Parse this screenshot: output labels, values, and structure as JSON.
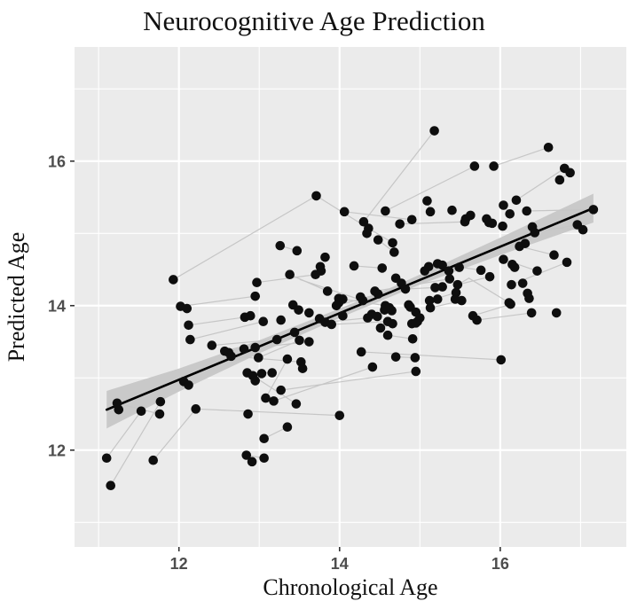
{
  "title": "Neurocognitive Age Prediction",
  "chart_data": {
    "type": "scatter",
    "title": "Neurocognitive Age Prediction",
    "xlabel": "Chronological Age",
    "ylabel": "Predicted Age",
    "xlim": [
      10.7,
      17.57
    ],
    "ylim": [
      10.66,
      17.58
    ],
    "x_ticks": [
      12,
      14,
      16
    ],
    "x_tick_labels": [
      "12",
      "14",
      "16"
    ],
    "y_ticks": [
      12,
      14,
      16
    ],
    "y_tick_labels": [
      "12",
      "14",
      "16"
    ],
    "x_minor_ticks": [
      11,
      13,
      15,
      17
    ],
    "y_minor_ticks": [
      11,
      13,
      15,
      17
    ],
    "grid": true,
    "legend": "none",
    "colors": {
      "panel_bg": "#ebebeb",
      "grid": "#ffffff",
      "point": "#0e0e0e",
      "regression_line": "#000000",
      "confidence_band": "#c9c9c9",
      "subject_line": "#c6c6c6",
      "tick_text": "#4d4d4d",
      "tick_mark": "#333333",
      "title_text": "#111111"
    },
    "regression": {
      "x1": 11.1,
      "y1": 12.56,
      "x2": 17.16,
      "y2": 15.35
    },
    "band": {
      "x": [
        11.1,
        12.0,
        13.0,
        14.0,
        14.5,
        15.0,
        16.0,
        17.16
      ],
      "upper": [
        12.82,
        13.13,
        13.52,
        13.96,
        14.18,
        14.43,
        14.94,
        15.55
      ],
      "lower": [
        12.3,
        12.81,
        13.34,
        13.83,
        14.06,
        14.29,
        14.7,
        15.15
      ]
    },
    "points": [
      [
        15.18,
        16.42
      ],
      [
        16.6,
        16.19
      ],
      [
        15.68,
        15.93
      ],
      [
        15.92,
        15.93
      ],
      [
        16.8,
        15.9
      ],
      [
        16.87,
        15.84
      ],
      [
        16.74,
        15.74
      ],
      [
        13.71,
        15.52
      ],
      [
        15.09,
        15.45
      ],
      [
        16.2,
        15.46
      ],
      [
        16.04,
        15.39
      ],
      [
        15.4,
        15.32
      ],
      [
        16.33,
        15.31
      ],
      [
        14.57,
        15.31
      ],
      [
        15.13,
        15.3
      ],
      [
        14.06,
        15.3
      ],
      [
        17.16,
        15.33
      ],
      [
        16.12,
        15.27
      ],
      [
        15.63,
        15.25
      ],
      [
        15.57,
        15.2
      ],
      [
        15.83,
        15.2
      ],
      [
        14.9,
        15.19
      ],
      [
        15.56,
        15.16
      ],
      [
        14.3,
        15.16
      ],
      [
        15.86,
        15.15
      ],
      [
        15.9,
        15.14
      ],
      [
        14.75,
        15.13
      ],
      [
        16.96,
        15.12
      ],
      [
        16.03,
        15.1
      ],
      [
        16.4,
        15.09
      ],
      [
        14.36,
        15.07
      ],
      [
        17.03,
        15.05
      ],
      [
        16.43,
        15.01
      ],
      [
        14.34,
        15.0
      ],
      [
        14.48,
        14.91
      ],
      [
        14.66,
        14.87
      ],
      [
        16.31,
        14.86
      ],
      [
        13.26,
        14.83
      ],
      [
        16.24,
        14.82
      ],
      [
        13.47,
        14.76
      ],
      [
        14.68,
        14.74
      ],
      [
        16.67,
        14.7
      ],
      [
        13.82,
        14.67
      ],
      [
        16.04,
        14.64
      ],
      [
        16.83,
        14.6
      ],
      [
        15.22,
        14.58
      ],
      [
        16.15,
        14.57
      ],
      [
        15.28,
        14.56
      ],
      [
        14.18,
        14.55
      ],
      [
        13.76,
        14.54
      ],
      [
        15.11,
        14.54
      ],
      [
        16.18,
        14.53
      ],
      [
        14.53,
        14.52
      ],
      [
        15.49,
        14.53
      ],
      [
        15.76,
        14.49
      ],
      [
        13.77,
        14.48
      ],
      [
        15.06,
        14.48
      ],
      [
        15.36,
        14.48
      ],
      [
        16.46,
        14.48
      ],
      [
        13.7,
        14.43
      ],
      [
        13.38,
        14.43
      ],
      [
        15.87,
        14.4
      ],
      [
        14.7,
        14.38
      ],
      [
        15.37,
        14.37
      ],
      [
        11.93,
        14.36
      ],
      [
        12.97,
        14.32
      ],
      [
        14.77,
        14.31
      ],
      [
        16.28,
        14.31
      ],
      [
        15.47,
        14.29
      ],
      [
        16.14,
        14.29
      ],
      [
        15.28,
        14.26
      ],
      [
        15.19,
        14.25
      ],
      [
        14.82,
        14.23
      ],
      [
        13.85,
        14.2
      ],
      [
        14.44,
        14.2
      ],
      [
        15.45,
        14.18
      ],
      [
        16.34,
        14.17
      ],
      [
        14.48,
        14.16
      ],
      [
        12.95,
        14.13
      ],
      [
        14.26,
        14.12
      ],
      [
        16.36,
        14.1
      ],
      [
        13.99,
        14.1
      ],
      [
        15.22,
        14.09
      ],
      [
        14.04,
        14.09
      ],
      [
        15.44,
        14.09
      ],
      [
        14.29,
        14.07
      ],
      [
        15.52,
        14.07
      ],
      [
        15.12,
        14.07
      ],
      [
        13.99,
        14.04
      ],
      [
        16.11,
        14.04
      ],
      [
        16.13,
        14.02
      ],
      [
        13.42,
        14.01
      ],
      [
        13.96,
        14.0
      ],
      [
        14.57,
        14.0
      ],
      [
        14.86,
        14.01
      ],
      [
        12.02,
        13.99
      ],
      [
        14.88,
        13.98
      ],
      [
        15.13,
        13.97
      ],
      [
        14.62,
        13.97
      ],
      [
        12.1,
        13.96
      ],
      [
        13.49,
        13.94
      ],
      [
        14.65,
        13.93
      ],
      [
        14.56,
        13.94
      ],
      [
        14.95,
        13.91
      ],
      [
        16.39,
        13.9
      ],
      [
        16.7,
        13.9
      ],
      [
        13.62,
        13.9
      ],
      [
        12.89,
        13.86
      ],
      [
        15.66,
        13.86
      ],
      [
        14.4,
        13.88
      ],
      [
        14.04,
        13.86
      ],
      [
        12.82,
        13.84
      ],
      [
        14.35,
        13.83
      ],
      [
        15.0,
        13.83
      ],
      [
        13.75,
        13.82
      ],
      [
        15.71,
        13.8
      ],
      [
        13.05,
        13.78
      ],
      [
        14.47,
        13.85
      ],
      [
        14.97,
        13.78
      ],
      [
        14.6,
        13.78
      ],
      [
        13.27,
        13.8
      ],
      [
        14.9,
        13.75
      ],
      [
        14.95,
        13.76
      ],
      [
        12.12,
        13.73
      ],
      [
        13.82,
        13.77
      ],
      [
        13.9,
        13.74
      ],
      [
        14.66,
        13.75
      ],
      [
        14.51,
        13.69
      ],
      [
        13.44,
        13.63
      ],
      [
        14.6,
        13.59
      ],
      [
        12.14,
        13.53
      ],
      [
        13.22,
        13.53
      ],
      [
        13.5,
        13.52
      ],
      [
        14.91,
        13.54
      ],
      [
        13.62,
        13.5
      ],
      [
        12.41,
        13.45
      ],
      [
        12.95,
        13.42
      ],
      [
        12.81,
        13.4
      ],
      [
        12.57,
        13.37
      ],
      [
        14.27,
        13.36
      ],
      [
        12.62,
        13.35
      ],
      [
        12.65,
        13.3
      ],
      [
        12.99,
        13.28
      ],
      [
        14.94,
        13.28
      ],
      [
        13.35,
        13.26
      ],
      [
        16.01,
        13.25
      ],
      [
        14.7,
        13.29
      ],
      [
        13.52,
        13.22
      ],
      [
        13.54,
        13.13
      ],
      [
        14.41,
        13.15
      ],
      [
        14.95,
        13.09
      ],
      [
        13.16,
        13.07
      ],
      [
        12.85,
        13.07
      ],
      [
        13.03,
        13.06
      ],
      [
        12.92,
        13.03
      ],
      [
        12.95,
        12.96
      ],
      [
        12.06,
        12.95
      ],
      [
        12.12,
        12.9
      ],
      [
        13.27,
        12.83
      ],
      [
        13.08,
        12.72
      ],
      [
        11.77,
        12.67
      ],
      [
        11.23,
        12.65
      ],
      [
        13.46,
        12.64
      ],
      [
        13.18,
        12.68
      ],
      [
        12.21,
        12.57
      ],
      [
        11.25,
        12.56
      ],
      [
        11.53,
        12.54
      ],
      [
        11.76,
        12.5
      ],
      [
        12.86,
        12.5
      ],
      [
        14.0,
        12.48
      ],
      [
        13.35,
        12.32
      ],
      [
        13.06,
        12.16
      ],
      [
        12.84,
        11.93
      ],
      [
        13.06,
        11.89
      ],
      [
        11.1,
        11.89
      ],
      [
        12.91,
        11.84
      ],
      [
        11.68,
        11.86
      ],
      [
        11.15,
        11.51
      ]
    ],
    "subject_segments": [
      [
        11.1,
        11.89,
        11.53,
        12.54
      ],
      [
        11.15,
        11.51,
        11.77,
        12.67
      ],
      [
        11.23,
        12.65,
        11.76,
        12.5
      ],
      [
        11.68,
        11.86,
        12.21,
        12.57
      ],
      [
        12.21,
        12.57,
        14.0,
        12.48
      ],
      [
        11.93,
        14.36,
        13.71,
        15.52
      ],
      [
        13.71,
        15.52,
        14.36,
        15.07
      ],
      [
        12.02,
        13.99,
        12.95,
        14.13
      ],
      [
        12.12,
        13.73,
        12.82,
        13.84
      ],
      [
        12.14,
        13.53,
        13.05,
        13.78
      ],
      [
        12.41,
        13.45,
        13.22,
        13.53
      ],
      [
        12.57,
        13.37,
        13.44,
        13.63
      ],
      [
        12.65,
        13.3,
        13.52,
        13.22
      ],
      [
        12.81,
        13.4,
        13.62,
        13.5
      ],
      [
        12.95,
        13.42,
        13.75,
        13.82
      ],
      [
        12.99,
        13.28,
        13.5,
        13.52
      ],
      [
        12.85,
        13.07,
        13.16,
        13.07
      ],
      [
        12.92,
        13.03,
        13.46,
        12.64
      ],
      [
        13.08,
        12.72,
        13.35,
        13.26
      ],
      [
        13.06,
        12.16,
        13.35,
        12.32
      ],
      [
        12.84,
        11.93,
        13.06,
        11.89
      ],
      [
        13.18,
        12.68,
        14.41,
        13.15
      ],
      [
        13.27,
        12.83,
        14.95,
        13.09
      ],
      [
        14.27,
        13.36,
        16.01,
        13.25
      ],
      [
        12.97,
        14.32,
        13.7,
        14.43
      ],
      [
        13.38,
        14.43,
        13.85,
        14.2
      ],
      [
        13.51,
        14.36,
        14.29,
        14.07
      ],
      [
        13.26,
        14.83,
        13.47,
        14.76
      ],
      [
        13.96,
        14.0,
        14.48,
        14.16
      ],
      [
        13.82,
        13.77,
        14.35,
        13.83
      ],
      [
        13.9,
        13.74,
        14.6,
        13.78
      ],
      [
        13.99,
        14.1,
        14.57,
        14.0
      ],
      [
        14.44,
        14.2,
        15.37,
        14.37
      ],
      [
        14.82,
        14.23,
        15.19,
        14.25
      ],
      [
        14.51,
        13.69,
        14.66,
        13.75
      ],
      [
        14.6,
        13.59,
        14.91,
        13.54
      ],
      [
        14.7,
        13.29,
        14.94,
        13.28
      ],
      [
        15.13,
        13.97,
        15.52,
        14.07
      ],
      [
        15.12,
        14.07,
        15.45,
        14.18
      ],
      [
        15.66,
        13.86,
        16.13,
        14.02
      ],
      [
        15.71,
        13.8,
        16.39,
        13.9
      ],
      [
        15.61,
        14.38,
        16.11,
        14.04
      ],
      [
        15.47,
        14.29,
        15.87,
        14.4
      ],
      [
        15.22,
        14.58,
        15.76,
        14.49
      ],
      [
        16.04,
        14.64,
        16.46,
        14.48
      ],
      [
        16.24,
        14.82,
        16.67,
        14.7
      ],
      [
        16.14,
        14.29,
        16.83,
        14.6
      ],
      [
        14.18,
        14.55,
        14.53,
        14.52
      ],
      [
        14.48,
        14.91,
        14.68,
        14.74
      ],
      [
        14.36,
        15.07,
        14.66,
        14.87
      ],
      [
        14.75,
        15.13,
        15.56,
        15.16
      ],
      [
        15.09,
        15.45,
        15.13,
        15.3
      ],
      [
        16.04,
        15.39,
        16.12,
        15.27
      ],
      [
        14.57,
        15.31,
        15.68,
        15.93
      ],
      [
        15.92,
        15.93,
        16.6,
        16.19
      ],
      [
        16.2,
        15.46,
        16.8,
        15.9
      ],
      [
        16.74,
        15.74,
        16.87,
        15.84
      ],
      [
        16.33,
        15.31,
        17.16,
        15.33
      ],
      [
        16.96,
        15.12,
        16.43,
        15.01
      ],
      [
        17.03,
        15.05,
        16.4,
        15.09
      ],
      [
        14.3,
        15.16,
        15.18,
        16.42
      ],
      [
        14.06,
        15.3,
        14.9,
        15.19
      ],
      [
        15.61,
        14.38,
        15.47,
        14.29
      ]
    ]
  }
}
